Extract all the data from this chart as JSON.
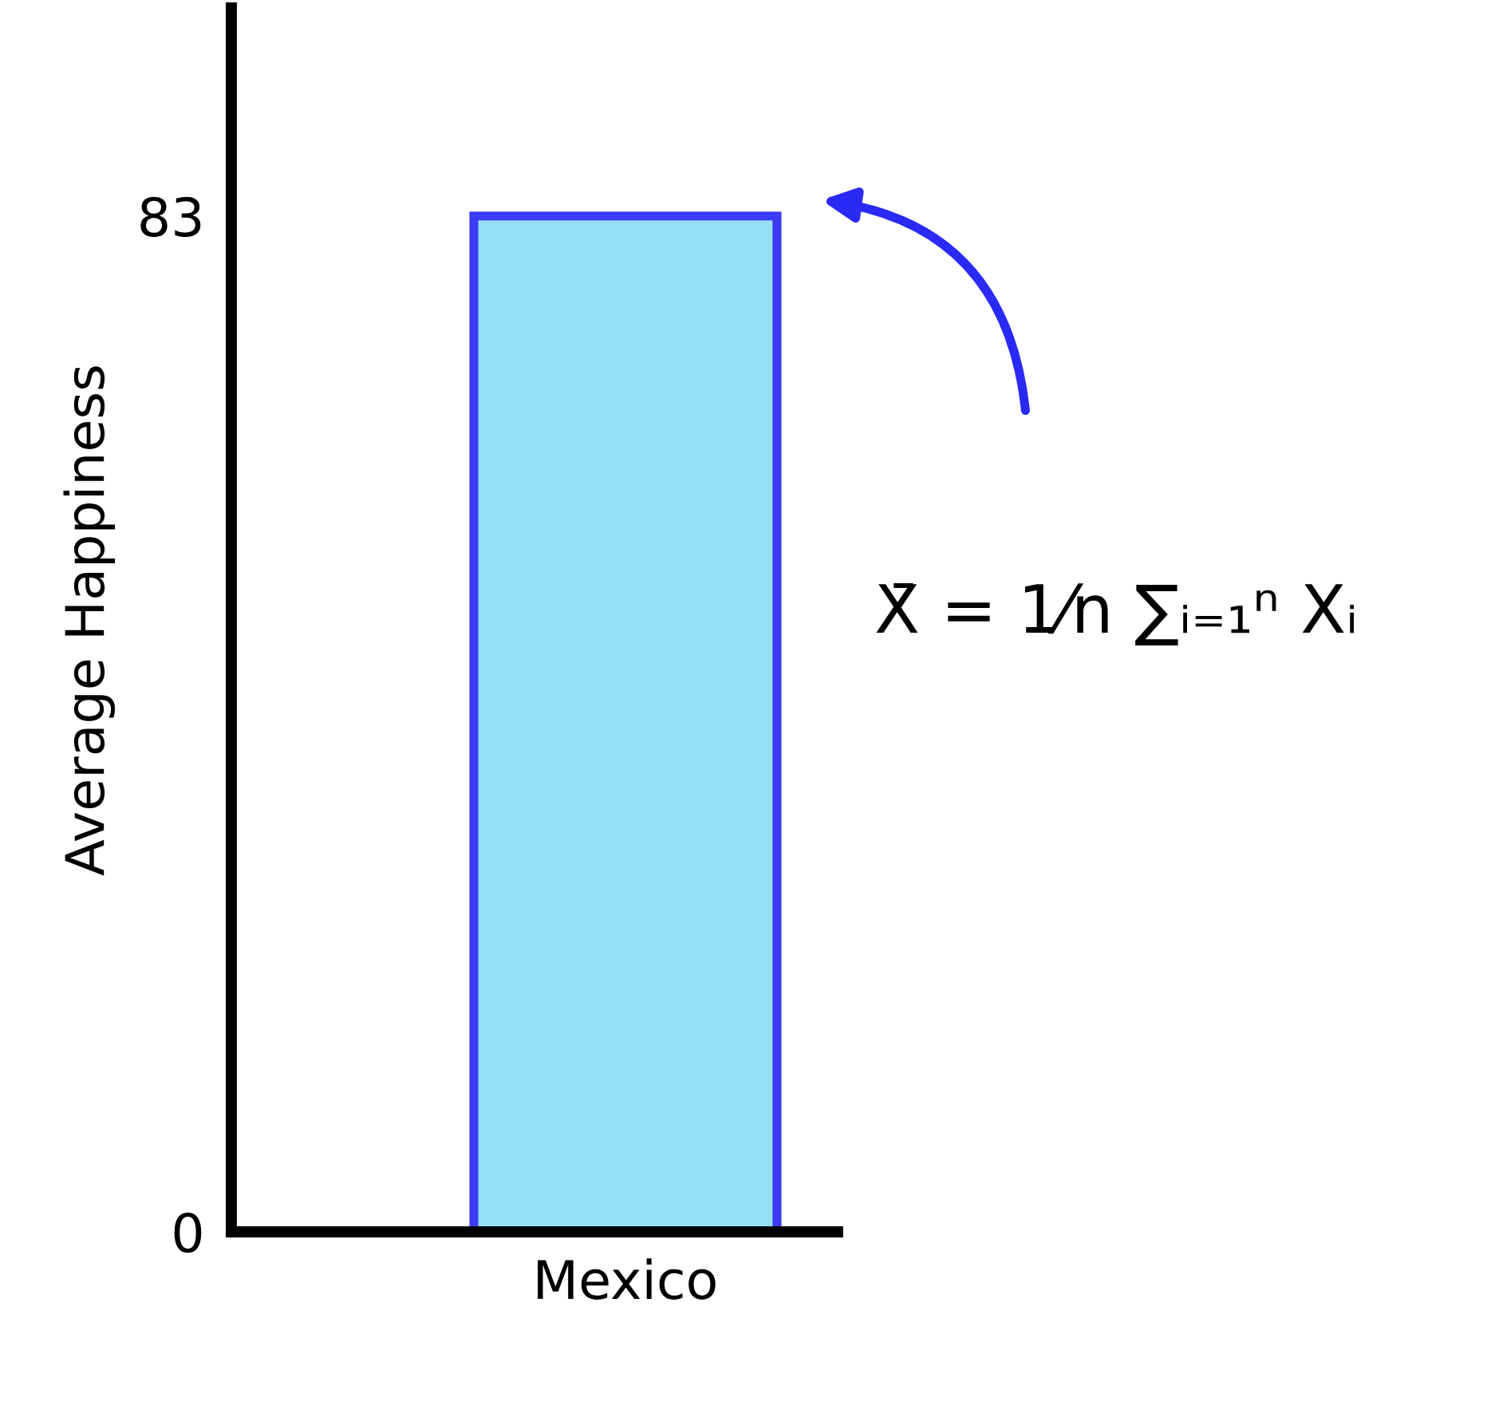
{
  "chart_data": {
    "type": "bar",
    "ylabel": "Average Happiness",
    "categories": [
      "Mexico"
    ],
    "series": [
      {
        "color": "#95dff5",
        "values": [
          83
        ]
      }
    ],
    "ylim": [
      0,
      100
    ],
    "yticks": [
      0,
      83
    ],
    "grid": false,
    "legend": false,
    "annotations": [
      "X̄ = 1⁄n ∑ᵢ₌₁ⁿ Xᵢ"
    ]
  }
}
